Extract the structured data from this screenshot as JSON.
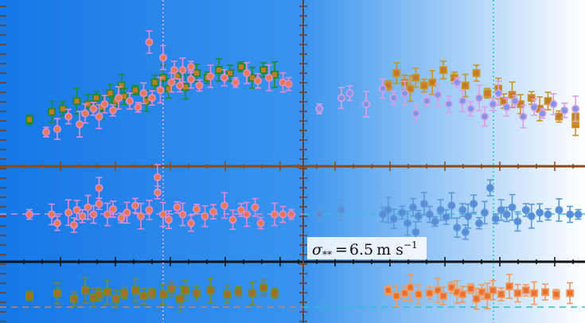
{
  "chart_data": {
    "type": "scatter",
    "description_note": "",
    "annotation": {
      "sigma_symbol": "σ",
      "sigma_subscript": "**",
      "equals": "=",
      "value": "6.5",
      "unit": "m s",
      "unit_exponent": "−1"
    },
    "background": {
      "left_color": "#1477e6",
      "right_color": "#ffffff"
    },
    "panels": [
      {
        "id": "top-left",
        "row": "rv",
        "col": "left",
        "series": [
          {
            "color": "#1f8a2f",
            "face": "#c07a2a",
            "marker": "square",
            "points": [
              [
                0.02,
                0.28
              ],
              [
                0.1,
                0.33
              ],
              [
                0.14,
                0.35
              ],
              [
                0.19,
                0.4
              ],
              [
                0.23,
                0.38
              ],
              [
                0.26,
                0.42
              ],
              [
                0.28,
                0.36
              ],
              [
                0.31,
                0.45
              ],
              [
                0.33,
                0.4
              ],
              [
                0.35,
                0.5
              ],
              [
                0.36,
                0.43
              ],
              [
                0.4,
                0.47
              ],
              [
                0.44,
                0.4
              ],
              [
                0.47,
                0.52
              ],
              [
                0.5,
                0.55
              ],
              [
                0.52,
                0.48
              ],
              [
                0.55,
                0.56
              ],
              [
                0.58,
                0.49
              ],
              [
                0.62,
                0.58
              ],
              [
                0.66,
                0.55
              ],
              [
                0.7,
                0.6
              ],
              [
                0.74,
                0.58
              ],
              [
                0.78,
                0.62
              ],
              [
                0.82,
                0.55
              ],
              [
                0.86,
                0.6
              ],
              [
                0.9,
                0.57
              ]
            ]
          },
          {
            "color": "#e08bd0",
            "face": "#e57a50",
            "marker": "circle",
            "points": [
              [
                0.08,
                0.2
              ],
              [
                0.12,
                0.22
              ],
              [
                0.16,
                0.3
              ],
              [
                0.2,
                0.25
              ],
              [
                0.22,
                0.32
              ],
              [
                0.25,
                0.35
              ],
              [
                0.27,
                0.3
              ],
              [
                0.29,
                0.38
              ],
              [
                0.32,
                0.34
              ],
              [
                0.34,
                0.42
              ],
              [
                0.38,
                0.4
              ],
              [
                0.41,
                0.36
              ],
              [
                0.43,
                0.45
              ],
              [
                0.46,
                0.42
              ],
              [
                0.49,
                0.47
              ],
              [
                0.53,
                0.52
              ],
              [
                0.56,
                0.5
              ],
              [
                0.57,
                0.6
              ],
              [
                0.6,
                0.54
              ],
              [
                0.63,
                0.5
              ],
              [
                0.67,
                0.56
              ],
              [
                0.72,
                0.55
              ],
              [
                0.76,
                0.52
              ],
              [
                0.8,
                0.58
              ],
              [
                0.84,
                0.53
              ],
              [
                0.88,
                0.55
              ],
              [
                0.93,
                0.52
              ],
              [
                0.95,
                0.51
              ],
              [
                0.5,
                0.68
              ],
              [
                0.54,
                0.6
              ],
              [
                0.6,
                0.62
              ],
              [
                0.45,
                0.78
              ]
            ]
          }
        ]
      },
      {
        "id": "top-right",
        "row": "rv",
        "col": "right",
        "series": [
          {
            "color": "#c8952a",
            "face": "#c8782a",
            "marker": "square",
            "points": [
              [
                0.3,
                0.5
              ],
              [
                0.33,
                0.58
              ],
              [
                0.36,
                0.52
              ],
              [
                0.38,
                0.48
              ],
              [
                0.4,
                0.55
              ],
              [
                0.43,
                0.5
              ],
              [
                0.46,
                0.52
              ],
              [
                0.5,
                0.6
              ],
              [
                0.54,
                0.55
              ],
              [
                0.58,
                0.5
              ],
              [
                0.62,
                0.58
              ],
              [
                0.66,
                0.45
              ],
              [
                0.7,
                0.48
              ],
              [
                0.72,
                0.4
              ],
              [
                0.75,
                0.44
              ],
              [
                0.78,
                0.38
              ],
              [
                0.82,
                0.42
              ],
              [
                0.85,
                0.35
              ],
              [
                0.88,
                0.4
              ],
              [
                0.92,
                0.3
              ],
              [
                0.98,
                0.25
              ],
              [
                0.98,
                0.3
              ]
            ]
          },
          {
            "color": "#d8a0e0",
            "face": "#7f95e8",
            "marker": "circle",
            "points": [
              [
                0.05,
                0.35
              ],
              [
                0.13,
                0.42
              ],
              [
                0.16,
                0.45
              ],
              [
                0.22,
                0.38
              ],
              [
                0.28,
                0.48
              ],
              [
                0.32,
                0.42
              ],
              [
                0.36,
                0.45
              ],
              [
                0.4,
                0.32
              ],
              [
                0.44,
                0.4
              ],
              [
                0.48,
                0.44
              ],
              [
                0.52,
                0.38
              ],
              [
                0.55,
                0.52
              ],
              [
                0.57,
                0.4
              ],
              [
                0.6,
                0.35
              ],
              [
                0.63,
                0.42
              ],
              [
                0.65,
                0.3
              ],
              [
                0.68,
                0.38
              ],
              [
                0.7,
                0.45
              ],
              [
                0.73,
                0.36
              ],
              [
                0.76,
                0.4
              ],
              [
                0.79,
                0.3
              ],
              [
                0.83,
                0.36
              ],
              [
                0.86,
                0.32
              ],
              [
                0.9,
                0.38
              ],
              [
                0.94,
                0.34
              ],
              [
                0.98,
                0.35
              ]
            ]
          }
        ]
      },
      {
        "id": "mid-left",
        "row": "res1",
        "col": "left",
        "series": [
          {
            "color": "#e08bd0",
            "face": "#e57a50",
            "marker": "circle",
            "points": [
              [
                0.02,
                0.5
              ],
              [
                0.1,
                0.5
              ],
              [
                0.12,
                0.4
              ],
              [
                0.16,
                0.52
              ],
              [
                0.19,
                0.55
              ],
              [
                0.21,
                0.48
              ],
              [
                0.23,
                0.58
              ],
              [
                0.25,
                0.5
              ],
              [
                0.27,
                0.62
              ],
              [
                0.3,
                0.5
              ],
              [
                0.32,
                0.56
              ],
              [
                0.35,
                0.46
              ],
              [
                0.37,
                0.52
              ],
              [
                0.4,
                0.6
              ],
              [
                0.42,
                0.48
              ],
              [
                0.45,
                0.55
              ],
              [
                0.48,
                0.75
              ],
              [
                0.5,
                0.5
              ],
              [
                0.52,
                0.44
              ],
              [
                0.55,
                0.58
              ],
              [
                0.57,
                0.5
              ],
              [
                0.6,
                0.4
              ],
              [
                0.62,
                0.56
              ],
              [
                0.65,
                0.48
              ],
              [
                0.68,
                0.53
              ],
              [
                0.72,
                0.6
              ],
              [
                0.75,
                0.44
              ],
              [
                0.78,
                0.55
              ],
              [
                0.8,
                0.5
              ],
              [
                0.83,
                0.58
              ],
              [
                0.85,
                0.4
              ],
              [
                0.9,
                0.5
              ],
              [
                0.93,
                0.5
              ],
              [
                0.96,
                0.5
              ],
              [
                0.27,
                0.8
              ],
              [
                0.18,
                0.38
              ],
              [
                0.48,
                0.92
              ]
            ]
          }
        ]
      },
      {
        "id": "mid-right",
        "row": "res1",
        "col": "right",
        "series": [
          {
            "color": "#5a9ad8",
            "face": "#5a8ad8",
            "marker": "circle",
            "points": [
              [
                0.05,
                0.5
              ],
              [
                0.13,
                0.55
              ],
              [
                0.28,
                0.5
              ],
              [
                0.3,
                0.55
              ],
              [
                0.32,
                0.45
              ],
              [
                0.35,
                0.52
              ],
              [
                0.37,
                0.4
              ],
              [
                0.39,
                0.58
              ],
              [
                0.41,
                0.48
              ],
              [
                0.43,
                0.62
              ],
              [
                0.45,
                0.5
              ],
              [
                0.47,
                0.42
              ],
              [
                0.49,
                0.55
              ],
              [
                0.51,
                0.47
              ],
              [
                0.53,
                0.6
              ],
              [
                0.55,
                0.35
              ],
              [
                0.57,
                0.55
              ],
              [
                0.59,
                0.48
              ],
              [
                0.61,
                0.62
              ],
              [
                0.63,
                0.4
              ],
              [
                0.65,
                0.52
              ],
              [
                0.67,
                0.8
              ],
              [
                0.69,
                0.45
              ],
              [
                0.71,
                0.55
              ],
              [
                0.73,
                0.5
              ],
              [
                0.75,
                0.58
              ],
              [
                0.77,
                0.42
              ],
              [
                0.8,
                0.55
              ],
              [
                0.82,
                0.48
              ],
              [
                0.85,
                0.52
              ],
              [
                0.88,
                0.5
              ],
              [
                0.92,
                0.55
              ],
              [
                0.96,
                0.5
              ],
              [
                0.99,
                0.5
              ],
              [
                0.4,
                0.3
              ],
              [
                0.58,
                0.3
              ]
            ]
          }
        ]
      },
      {
        "id": "bot-left",
        "row": "res2",
        "col": "left",
        "series": [
          {
            "color": "#7a8a20",
            "face": "#a86a2a",
            "marker": "square",
            "points": [
              [
                0.02,
                0.45
              ],
              [
                0.12,
                0.5
              ],
              [
                0.18,
                0.4
              ],
              [
                0.22,
                0.55
              ],
              [
                0.25,
                0.42
              ],
              [
                0.27,
                0.48
              ],
              [
                0.3,
                0.52
              ],
              [
                0.33,
                0.4
              ],
              [
                0.36,
                0.5
              ],
              [
                0.4,
                0.55
              ],
              [
                0.43,
                0.45
              ],
              [
                0.46,
                0.5
              ],
              [
                0.5,
                0.48
              ],
              [
                0.53,
                0.58
              ],
              [
                0.56,
                0.4
              ],
              [
                0.58,
                0.55
              ],
              [
                0.62,
                0.5
              ],
              [
                0.67,
                0.55
              ],
              [
                0.73,
                0.48
              ],
              [
                0.77,
                0.52
              ],
              [
                0.82,
                0.5
              ],
              [
                0.86,
                0.6
              ],
              [
                0.9,
                0.5
              ]
            ]
          }
        ]
      },
      {
        "id": "bot-right",
        "row": "res2",
        "col": "right",
        "series": [
          {
            "color": "#f09a60",
            "face": "#e8702a",
            "marker": "square",
            "points": [
              [
                0.3,
                0.55
              ],
              [
                0.33,
                0.45
              ],
              [
                0.36,
                0.5
              ],
              [
                0.38,
                0.6
              ],
              [
                0.41,
                0.48
              ],
              [
                0.45,
                0.5
              ],
              [
                0.48,
                0.55
              ],
              [
                0.5,
                0.45
              ],
              [
                0.53,
                0.6
              ],
              [
                0.55,
                0.52
              ],
              [
                0.57,
                0.48
              ],
              [
                0.6,
                0.58
              ],
              [
                0.62,
                0.4
              ],
              [
                0.64,
                0.52
              ],
              [
                0.66,
                0.45
              ],
              [
                0.68,
                0.55
              ],
              [
                0.71,
                0.48
              ],
              [
                0.74,
                0.62
              ],
              [
                0.77,
                0.5
              ],
              [
                0.8,
                0.55
              ],
              [
                0.83,
                0.5
              ],
              [
                0.87,
                0.52
              ],
              [
                0.91,
                0.48
              ],
              [
                0.96,
                0.5
              ]
            ]
          }
        ]
      }
    ]
  }
}
